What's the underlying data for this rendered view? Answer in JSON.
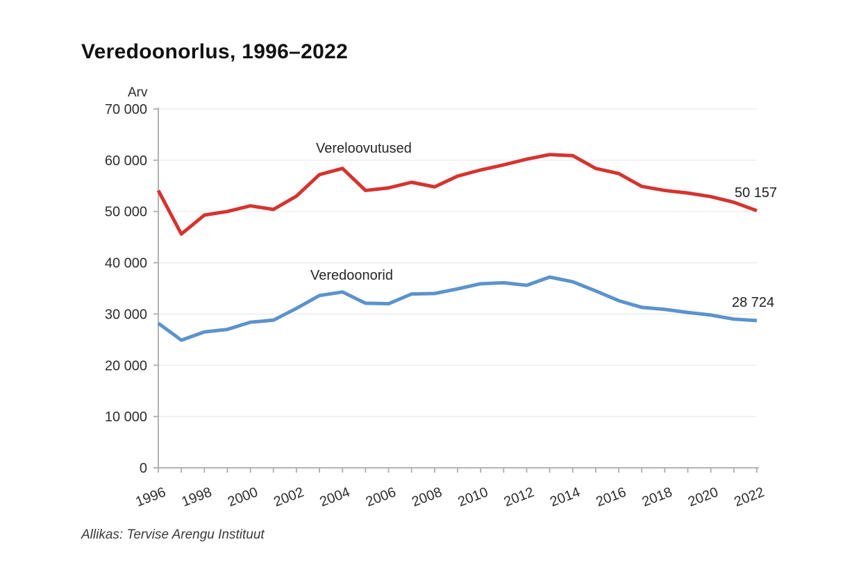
{
  "page": {
    "title": "Veredoonorlus, 1996–2022",
    "source": "Allikas: Tervise Arengu Instituut"
  },
  "chart_data": {
    "type": "line",
    "title": "Veredoonorlus, 1996–2022",
    "y_axis_title": "Arv",
    "ylim": [
      0,
      70000
    ],
    "y_ticks": [
      0,
      10000,
      20000,
      30000,
      40000,
      50000,
      60000,
      70000
    ],
    "y_tick_labels": [
      "0",
      "10 000",
      "20 000",
      "30 000",
      "40 000",
      "50 000",
      "60 000",
      "70 000"
    ],
    "grid": "horizontal",
    "legend_position": "inline-labels",
    "x": [
      1996,
      1997,
      1998,
      1999,
      2000,
      2001,
      2002,
      2003,
      2004,
      2005,
      2006,
      2007,
      2008,
      2009,
      2010,
      2011,
      2012,
      2013,
      2014,
      2015,
      2016,
      2017,
      2018,
      2019,
      2020,
      2021,
      2022
    ],
    "x_tick_label_years": [
      1996,
      1998,
      2000,
      2002,
      2004,
      2006,
      2008,
      2010,
      2012,
      2014,
      2016,
      2018,
      2020,
      2022
    ],
    "series": [
      {
        "name": "Vereloovutused",
        "color": "#d5342f",
        "end_label": "50 157",
        "end_value": 50157,
        "values": [
          54100,
          45600,
          49300,
          50000,
          51100,
          50400,
          53000,
          57200,
          58400,
          54100,
          54600,
          55700,
          54800,
          56900,
          58100,
          59100,
          60200,
          61100,
          60900,
          58400,
          57400,
          54900,
          54100,
          53600,
          52900,
          51800,
          50157
        ]
      },
      {
        "name": "Veredoonorid",
        "color": "#5b93cc",
        "end_label": "28 724",
        "end_value": 28724,
        "values": [
          28200,
          24900,
          26500,
          27000,
          28400,
          28800,
          31100,
          33600,
          34300,
          32100,
          32000,
          33900,
          34000,
          34900,
          35900,
          36100,
          35600,
          37200,
          36300,
          34500,
          32600,
          31300,
          30900,
          30300,
          29800,
          29000,
          28724
        ]
      }
    ],
    "axis_color": "#b3b3b3",
    "grid_color": "#eaeaea",
    "tick_label_color": "#2d2d2d"
  }
}
